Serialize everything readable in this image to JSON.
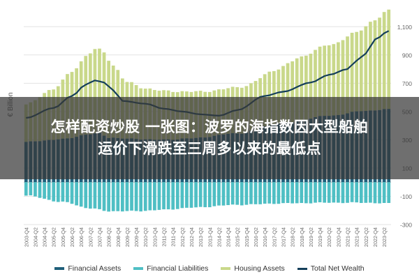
{
  "banner": {
    "line1": "怎样配资炒股 一张图：波罗的海指数因大型船舶",
    "line2": "运价下滑跌至三周多以来的最低点"
  },
  "colors": {
    "financial_assets": "#1f5f7a",
    "financial_liabilities": "#4fbfc4",
    "housing_assets": "#c9d88a",
    "total_net_wealth": "#143e5a",
    "grid": "#e3e3e3",
    "axis_text": "#666666"
  },
  "chart_data": {
    "type": "area",
    "ylabel": "€ Billion",
    "ylim": [
      -300,
      1200
    ],
    "yticks": [
      -300,
      -100,
      100,
      300,
      500,
      700,
      900,
      1100
    ],
    "ytick_labels": [
      "-300",
      "-100",
      "100",
      "300",
      "500",
      "700",
      "900",
      "1,100"
    ],
    "start_quarter": "2003-Q4",
    "x_tick_labels": [
      "2003-Q4",
      "2004-Q2",
      "2004-Q4",
      "2005-Q2",
      "2005-Q4",
      "2006-Q2",
      "2006-Q4",
      "2007-Q2",
      "2007-Q4",
      "2008-Q2",
      "2008-Q4",
      "2009-Q2",
      "2009-Q4",
      "2010-Q2",
      "2010-Q4",
      "2011-Q2",
      "2011-Q4",
      "2012-Q2",
      "2012-Q4",
      "2013-Q2",
      "2013-Q4",
      "2014-Q2",
      "2014-Q4",
      "2015-Q2",
      "2015-Q4",
      "2016-Q2",
      "2016-Q4",
      "2017-Q2",
      "2017-Q4",
      "2018-Q2",
      "2018-Q4",
      "2019-Q2",
      "2019-Q4",
      "2020-Q2",
      "2020-Q4",
      "2021-Q2",
      "2021-Q4",
      "2022-Q2",
      "2022-Q4",
      "2023-Q2"
    ],
    "series": [
      {
        "name": "Financial Assets",
        "key": "financial_assets",
        "kind": "bar",
        "anchors": [
          [
            0,
            285
          ],
          [
            8,
            305
          ],
          [
            14,
            340
          ],
          [
            16,
            345
          ],
          [
            18,
            315
          ],
          [
            24,
            305
          ],
          [
            30,
            300
          ],
          [
            36,
            310
          ],
          [
            46,
            345
          ],
          [
            56,
            420
          ],
          [
            66,
            470
          ],
          [
            74,
            505
          ],
          [
            79,
            515
          ]
        ]
      },
      {
        "name": "Financial Liabilities",
        "key": "financial_liabilities",
        "kind": "bar_negative",
        "anchors": [
          [
            0,
            -95
          ],
          [
            8,
            -140
          ],
          [
            14,
            -185
          ],
          [
            18,
            -205
          ],
          [
            24,
            -205
          ],
          [
            30,
            -195
          ],
          [
            36,
            -180
          ],
          [
            46,
            -160
          ],
          [
            56,
            -150
          ],
          [
            66,
            -145
          ],
          [
            74,
            -145
          ],
          [
            79,
            -150
          ]
        ]
      },
      {
        "name": "Housing Assets",
        "key": "housing_assets",
        "kind": "bar_stacked",
        "anchors": [
          [
            0,
            265
          ],
          [
            6,
            360
          ],
          [
            10,
            470
          ],
          [
            14,
            575
          ],
          [
            15,
            595
          ],
          [
            17,
            590
          ],
          [
            19,
            510
          ],
          [
            22,
            400
          ],
          [
            26,
            360
          ],
          [
            30,
            345
          ],
          [
            36,
            330
          ],
          [
            42,
            320
          ],
          [
            48,
            330
          ],
          [
            54,
            380
          ],
          [
            60,
            450
          ],
          [
            66,
            500
          ],
          [
            72,
            560
          ],
          [
            76,
            640
          ],
          [
            79,
            700
          ]
        ]
      },
      {
        "name": "Total Net Wealth",
        "key": "total_net_wealth",
        "kind": "line",
        "anchors": [
          [
            0,
            455
          ],
          [
            6,
            525
          ],
          [
            10,
            610
          ],
          [
            13,
            690
          ],
          [
            15,
            720
          ],
          [
            17,
            705
          ],
          [
            19,
            650
          ],
          [
            21,
            575
          ],
          [
            26,
            555
          ],
          [
            30,
            520
          ],
          [
            34,
            500
          ],
          [
            38,
            480
          ],
          [
            42,
            470
          ],
          [
            46,
            510
          ],
          [
            52,
            610
          ],
          [
            56,
            640
          ],
          [
            62,
            705
          ],
          [
            66,
            760
          ],
          [
            70,
            800
          ],
          [
            72,
            860
          ],
          [
            74,
            910
          ],
          [
            76,
            1010
          ],
          [
            79,
            1070
          ]
        ]
      }
    ]
  },
  "legend": [
    {
      "label": "Financial Assets",
      "key": "financial_assets"
    },
    {
      "label": "Financial Liabilities",
      "key": "financial_liabilities"
    },
    {
      "label": "Housing Assets",
      "key": "housing_assets"
    },
    {
      "label": "Total Net Wealth",
      "key": "total_net_wealth"
    }
  ]
}
